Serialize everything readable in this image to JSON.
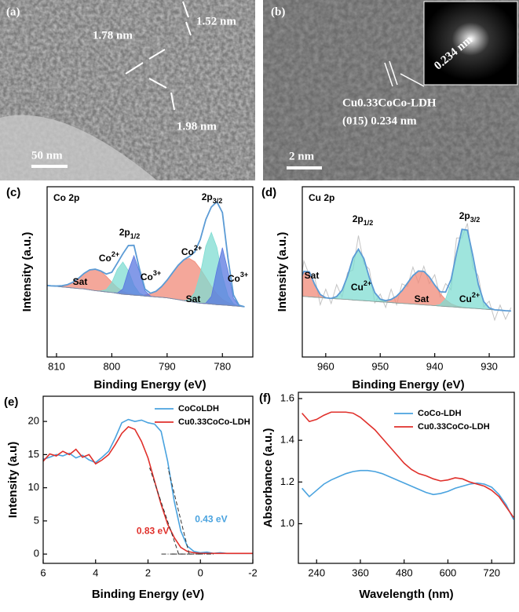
{
  "tem_images": [
    {
      "label": "(a)",
      "scale_bar": "50 nm",
      "annotations": [
        "1.52 nm",
        "1.78 nm",
        "1.98 nm"
      ]
    },
    {
      "label": "(b)",
      "scale_bar": "2 nm",
      "inset_label": "0.234 nm",
      "annotations": [
        "Cu0.33CoCo-LDH",
        "(015)  0.234 nm"
      ]
    }
  ],
  "chart_data": [
    {
      "type": "xps",
      "panel": "(c)",
      "title": "Co 2p",
      "x_label": "Binding Energy (eV)",
      "y_label": "Intensity (a.u.)",
      "xlim": [
        811.7,
        774.5
      ],
      "xticks": [
        810,
        800,
        790,
        780
      ],
      "ylim": [
        0,
        95
      ],
      "x": [
        812,
        811,
        810,
        809,
        808,
        807,
        806,
        805,
        804,
        803,
        802,
        801,
        800,
        799,
        798,
        797,
        796,
        795,
        794,
        793,
        792,
        791,
        790,
        789,
        788,
        787,
        786,
        785,
        784,
        783,
        782,
        781,
        780,
        779,
        778,
        777,
        776
      ],
      "series": [
        {
          "style": "area",
          "color": "#f08a78",
          "values": [
            0,
            0,
            0.2,
            0.7,
            1.6,
            3.3,
            5.8,
            8.7,
            11.1,
            12,
            11.1,
            8.7,
            5.8,
            3.3,
            1.6,
            0.7,
            0.3,
            0.3,
            0.7,
            1.6,
            3.2,
            6,
            9.9,
            14.6,
            19.2,
            22.7,
            24,
            22.7,
            19.2,
            14.6,
            9.9,
            6,
            3.2,
            1.6,
            0.7,
            0.3,
            0
          ]
        },
        {
          "style": "area",
          "color": "#7fdcd2",
          "values": [
            0,
            0,
            0,
            0,
            0,
            0,
            0,
            0,
            0,
            0,
            0.2,
            1.3,
            5.5,
            13.4,
            18,
            13.4,
            5.5,
            1.3,
            0.2,
            0,
            0,
            0,
            0,
            0,
            0,
            0,
            1.1,
            5.4,
            16.4,
            32,
            40,
            32,
            16.4,
            5.4,
            1.1,
            0,
            0
          ]
        },
        {
          "style": "area",
          "color": "#5a78e0",
          "values": [
            0,
            0,
            0,
            0,
            0,
            0,
            0,
            0,
            0,
            0,
            0,
            0,
            0,
            0.2,
            3,
            13.3,
            22,
            13.3,
            3,
            0.2,
            0,
            0,
            0,
            0,
            0,
            0,
            0,
            0,
            0,
            0.3,
            4.3,
            19.4,
            32,
            19.4,
            4.3,
            0.3,
            0
          ]
        },
        {
          "style": "baseline",
          "color": "#8a8a8a",
          "values": [
            40,
            39.7,
            39.4,
            39.1,
            38.8,
            38.5,
            38.2,
            38,
            37.5,
            37,
            36.7,
            36.3,
            36,
            35.5,
            35,
            34.8,
            34.5,
            34.3,
            34,
            33.8,
            33.5,
            33.3,
            33,
            32.5,
            32,
            31.5,
            31,
            30.5,
            30,
            29.8,
            29.5,
            29.2,
            29,
            28.8,
            28.5,
            28.3,
            28
          ]
        },
        {
          "style": "line",
          "color": "#5b9bd5",
          "values": [
            40,
            39.7,
            39.6,
            39.8,
            40.4,
            41.8,
            44,
            46.7,
            48.6,
            49,
            48,
            46.3,
            47.3,
            52.4,
            57.6,
            62.2,
            62.3,
            49.2,
            37.9,
            35.6,
            36.7,
            39.3,
            42.9,
            47.1,
            51.2,
            54.2,
            56.1,
            58.6,
            65.6,
            76.7,
            83.7,
            86.6,
            80.6,
            55.2,
            34.6,
            28.9,
            28
          ]
        }
      ],
      "annotations": [
        {
          "text": "2p",
          "sub": "3/2"
        },
        {
          "text": "2p",
          "sub": "1/2"
        },
        {
          "text": "Co",
          "sup": "2+"
        },
        {
          "text": "Co",
          "sup": "3+"
        },
        {
          "text": "Sat"
        },
        {
          "text": "Sat"
        },
        {
          "text": "Co",
          "sup": "2+"
        },
        {
          "text": "Co",
          "sup": "3+"
        }
      ]
    },
    {
      "type": "xps",
      "panel": "(d)",
      "title": "Cu 2p",
      "x_label": "Binding Energy (eV)",
      "y_label": "Intensity (a.u.)",
      "xlim": [
        964.3,
        925.4
      ],
      "xticks": [
        960,
        950,
        940,
        930
      ],
      "ylim": [
        0,
        100
      ],
      "x": [
        966,
        965,
        964,
        963,
        962,
        961,
        960,
        959,
        958,
        957,
        956,
        955,
        954,
        953,
        952,
        951,
        950,
        949,
        948,
        947,
        946,
        945,
        944,
        943,
        942,
        941,
        940,
        939,
        938,
        937,
        936,
        935,
        934,
        933,
        932,
        931,
        930,
        929,
        928,
        927,
        926
      ],
      "series": [
        {
          "style": "noise",
          "color": "#c4c4c4",
          "values": [
            40.8,
            38.1,
            56.3,
            48,
            46.4,
            30.7,
            39.8,
            31.4,
            42.5,
            35.2,
            49.5,
            51.2,
            71.3,
            54.8,
            51.6,
            31.8,
            37,
            29.1,
            39.8,
            30.7,
            43,
            41.4,
            52.8,
            43.5,
            53.3,
            43.1,
            48.3,
            35.3,
            43.1,
            39.5,
            69.9,
            70,
            78.5,
            52.5,
            47.6,
            29.5,
            32.8,
            21.7,
            30.5,
            22.2,
            29
          ]
        },
        {
          "style": "area",
          "color": "#f08a78",
          "values": [
            1.8,
            7.3,
            14.7,
            14.7,
            7.3,
            1.8,
            0.2,
            0,
            0,
            0,
            0,
            0,
            0,
            0,
            0,
            0,
            0.3,
            0.7,
            1.8,
            4,
            7.5,
            12.1,
            16.7,
            19.7,
            19.7,
            16.7,
            12.1,
            7.5,
            4,
            1.8,
            0.7,
            0.3,
            0,
            0,
            0,
            0,
            0,
            0,
            0,
            0,
            0
          ]
        },
        {
          "style": "area",
          "color": "#7fdcd2",
          "values": [
            0,
            0,
            0,
            0,
            0,
            0,
            0,
            0,
            1.3,
            5.2,
            13.7,
            24.7,
            30,
            24.7,
            13.7,
            5.2,
            1.3,
            0.2,
            0,
            0,
            0,
            0,
            0,
            0,
            0,
            0,
            0,
            0.9,
            4.4,
            14.2,
            30.9,
            45.7,
            45.7,
            30.9,
            14.2,
            4.4,
            0.9,
            0,
            0,
            0,
            0
          ]
        },
        {
          "style": "baseline",
          "color": "#8a8a8a",
          "values": [
            36,
            35.8,
            35.6,
            35.3,
            35.1,
            34.9,
            34.6,
            34.4,
            34.2,
            34,
            33.8,
            33.5,
            33.3,
            33.1,
            32.9,
            32.6,
            32.4,
            32.2,
            32,
            31.7,
            31.5,
            31.3,
            31.1,
            30.8,
            30.6,
            30.4,
            30.2,
            29.9,
            29.7,
            29.5,
            29.3,
            29,
            28.8,
            28.6,
            28.4,
            28.1,
            27.9,
            27.7,
            27.5,
            27.2,
            27
          ]
        },
        {
          "style": "line",
          "color": "#5b9bd5",
          "values": [
            37.8,
            43.1,
            50.3,
            50,
            42.4,
            36.7,
            34.8,
            34.4,
            35.5,
            39.2,
            47.5,
            58.2,
            63.3,
            57.8,
            46.6,
            37.8,
            34,
            33.1,
            33.8,
            35.7,
            39,
            43.4,
            47.8,
            50.5,
            50.3,
            47.1,
            42.3,
            38.3,
            38.1,
            45.5,
            60.9,
            75,
            74.5,
            59.5,
            42.6,
            32.5,
            28.8,
            27.7,
            27.5,
            27.2,
            27
          ]
        }
      ],
      "annotations": [
        {
          "text": "2p",
          "sub": "1/2"
        },
        {
          "text": "2p",
          "sub": "3/2"
        },
        {
          "text": "Sat"
        },
        {
          "text": "Cu",
          "sup": "2+"
        },
        {
          "text": "Sat"
        },
        {
          "text": "Cu",
          "sup": "2+"
        }
      ]
    },
    {
      "type": "line",
      "panel": "(e)",
      "x_label": "Binding Energy (eV)",
      "y_label": "Intensity (a.u)",
      "xlim": [
        6,
        -2
      ],
      "xticks": [
        6,
        4,
        2,
        0,
        -2
      ],
      "ylim": [
        -1.4,
        23.8
      ],
      "yticks": [
        0,
        5,
        10,
        15,
        20
      ],
      "x": [
        6,
        5.75,
        5.5,
        5.25,
        5,
        4.75,
        4.5,
        4.25,
        4,
        3.75,
        3.5,
        3.25,
        3,
        2.75,
        2.5,
        2.25,
        2,
        1.75,
        1.5,
        1.25,
        1,
        0.75,
        0.5,
        0.25,
        0,
        -0.25,
        -0.5,
        -0.75,
        -1,
        -1.25,
        -1.5,
        -1.75,
        -2
      ],
      "series": [
        {
          "name": "CoCoLDH",
          "color": "#4aa3df",
          "values": [
            14.3,
            14.6,
            15,
            14.8,
            15.2,
            14.5,
            14.9,
            14.2,
            13.8,
            14.6,
            15.5,
            17.5,
            19.8,
            20.3,
            20,
            20.2,
            19.8,
            19.6,
            18.5,
            14,
            8,
            3.5,
            1.2,
            0.4,
            0.2,
            0.3,
            0.1,
            0.2,
            0.1,
            0.1,
            0.1,
            0.1,
            0.1
          ]
        },
        {
          "name": "Cu0.33CoCo-LDH",
          "color": "#e0302b",
          "values": [
            14,
            15.1,
            14.8,
            15.5,
            15,
            15.8,
            14.6,
            15,
            13.6,
            14.2,
            15,
            16.5,
            18.2,
            19.2,
            18.8,
            17,
            14.5,
            11,
            7.5,
            4.5,
            2.5,
            1,
            0.4,
            0.2,
            0.1,
            0.1,
            0.1,
            0.1,
            0.1,
            0.1,
            0.1,
            0.1,
            0.1
          ]
        }
      ],
      "annotations": [
        {
          "text": "0.83 eV",
          "value": 0.83,
          "color": "#e0302b"
        },
        {
          "text": "0.43 eV",
          "value": 0.43,
          "color": "#4aa3df"
        }
      ]
    },
    {
      "type": "line",
      "panel": "(f)",
      "x_label": "Wavelength (nm)",
      "y_label": "Absorbance (a.u.)",
      "xlim": [
        190,
        782
      ],
      "xticks": [
        240,
        360,
        480,
        600,
        720
      ],
      "ylim": [
        0.81,
        1.63
      ],
      "yticks": [
        {
          "value": 1,
          "label": "1.0"
        },
        1.2,
        1.4,
        1.6
      ],
      "x": [
        200,
        220,
        240,
        260,
        280,
        300,
        320,
        340,
        360,
        380,
        400,
        420,
        440,
        460,
        480,
        500,
        520,
        540,
        560,
        580,
        600,
        620,
        640,
        660,
        680,
        700,
        720,
        740,
        760,
        780
      ],
      "series": [
        {
          "name": "CoCo-LDH",
          "color": "#4aa3df",
          "values": [
            1.17,
            1.13,
            1.16,
            1.19,
            1.21,
            1.225,
            1.24,
            1.25,
            1.255,
            1.255,
            1.25,
            1.24,
            1.225,
            1.21,
            1.195,
            1.18,
            1.165,
            1.15,
            1.14,
            1.145,
            1.155,
            1.17,
            1.18,
            1.19,
            1.195,
            1.19,
            1.175,
            1.14,
            1.09,
            1.02
          ]
        },
        {
          "name": "Cu0.33CoCo-LDH",
          "color": "#e0302b",
          "values": [
            1.53,
            1.49,
            1.5,
            1.52,
            1.535,
            1.535,
            1.535,
            1.53,
            1.51,
            1.48,
            1.45,
            1.41,
            1.37,
            1.33,
            1.29,
            1.26,
            1.24,
            1.23,
            1.215,
            1.205,
            1.21,
            1.22,
            1.215,
            1.2,
            1.19,
            1.18,
            1.16,
            1.13,
            1.08,
            1.03
          ]
        }
      ]
    }
  ]
}
